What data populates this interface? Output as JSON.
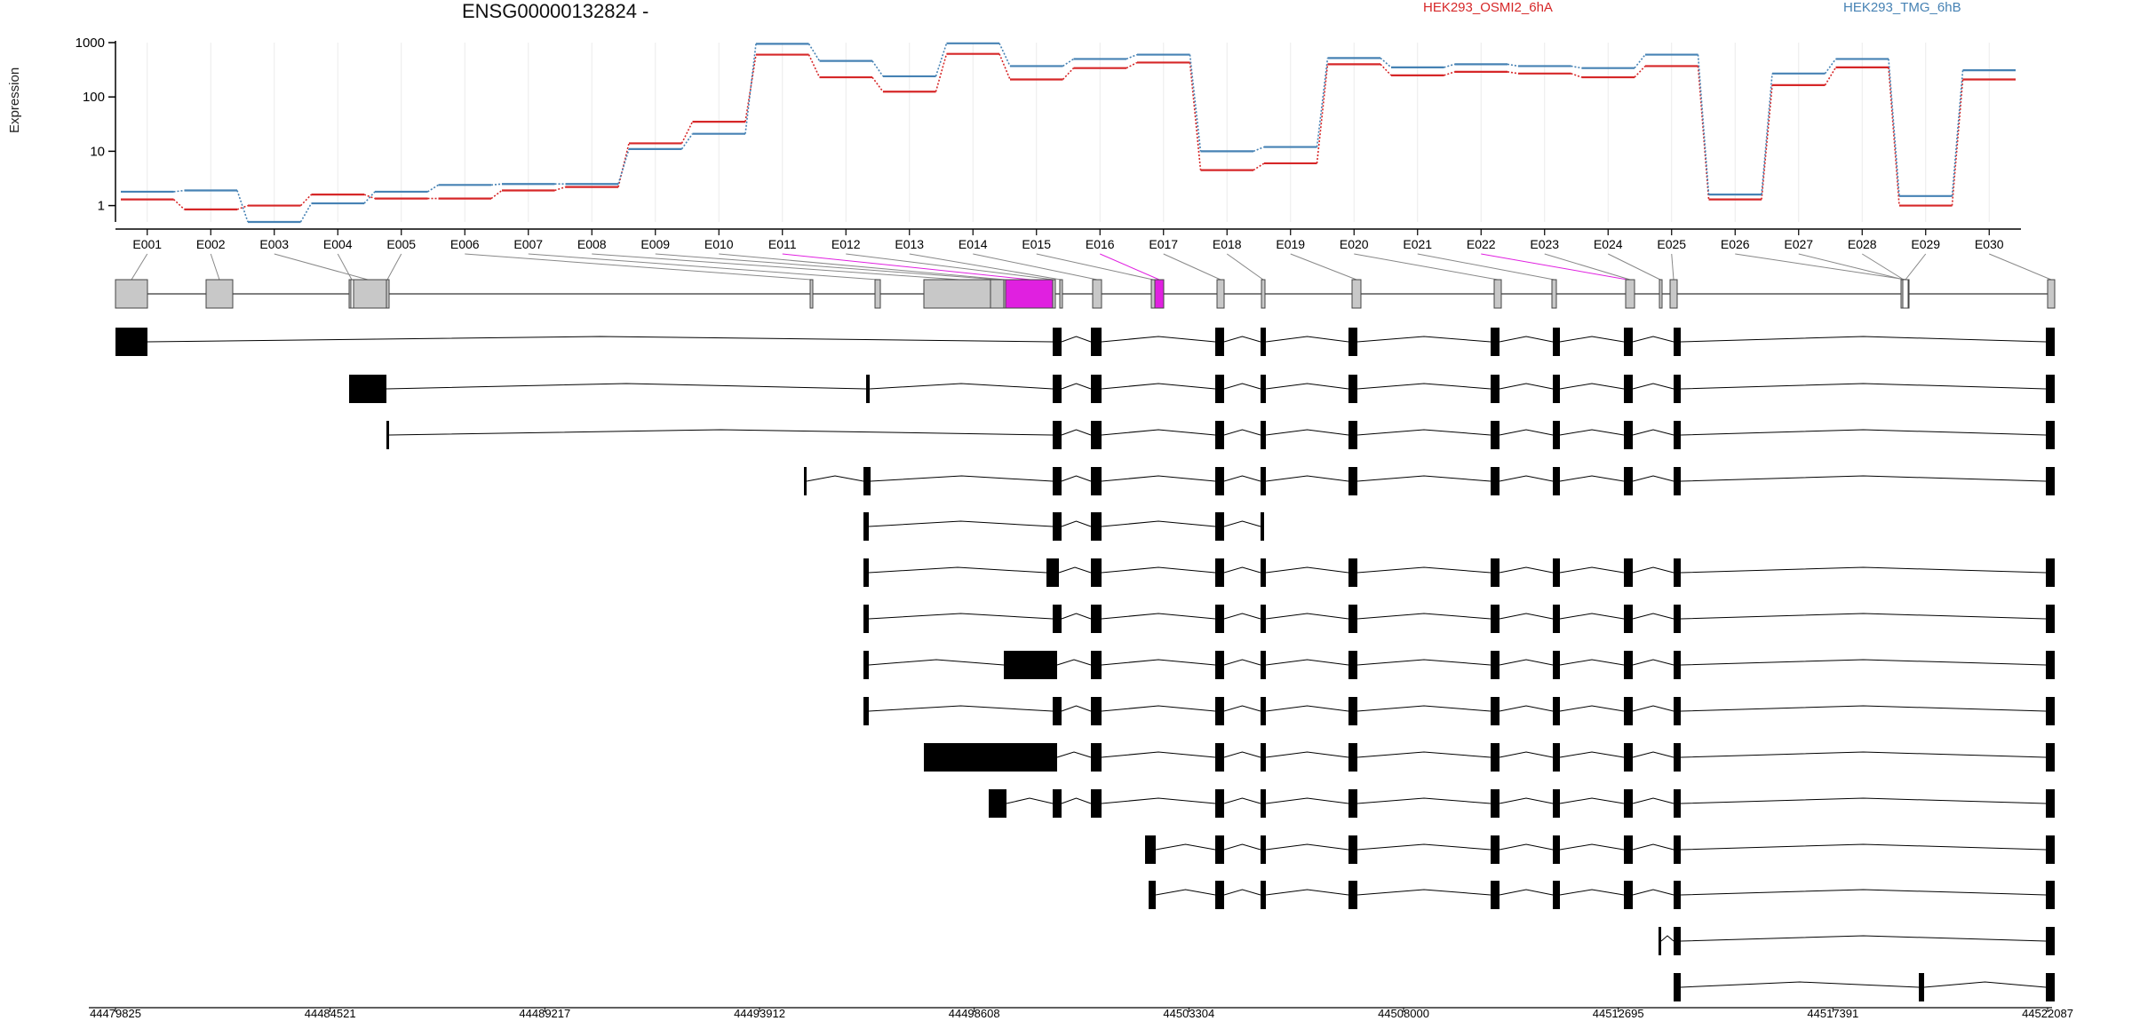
{
  "chart_data": {
    "type": "line",
    "title": "ENSG00000132824 -",
    "ylabel": "Expression",
    "yscale": "log",
    "ylim": [
      0.5,
      1000
    ],
    "yticks": [
      "1",
      "10",
      "100",
      "1000"
    ],
    "legend": "top",
    "categories": [
      "E001",
      "E002",
      "E003",
      "E004",
      "E005",
      "E006",
      "E007",
      "E008",
      "E009",
      "E010",
      "E011",
      "E012",
      "E013",
      "E014",
      "E015",
      "E016",
      "E017",
      "E018",
      "E019",
      "E020",
      "E021",
      "E022",
      "E023",
      "E024",
      "E025",
      "E026",
      "E027",
      "E028",
      "E029",
      "E030"
    ],
    "series": [
      {
        "name": "HEK293_OSMI2_6hA",
        "color": "#d62728",
        "values": [
          1.3,
          0.85,
          1.0,
          1.6,
          1.35,
          1.35,
          1.9,
          2.2,
          14,
          35,
          600,
          230,
          125,
          620,
          210,
          340,
          430,
          4.5,
          6,
          400,
          250,
          290,
          270,
          230,
          370,
          1.3,
          165,
          350,
          1.0,
          210
        ]
      },
      {
        "name": "HEK293_TMG_6hB",
        "color": "#4682b4",
        "values": [
          1.8,
          1.9,
          0.5,
          1.1,
          1.8,
          2.4,
          2.5,
          2.5,
          11,
          21,
          950,
          460,
          240,
          970,
          370,
          500,
          600,
          10,
          12,
          520,
          350,
          400,
          370,
          340,
          600,
          1.6,
          270,
          500,
          1.5,
          310
        ]
      }
    ],
    "exon_highlight": [
      "E011",
      "E016",
      "E022"
    ],
    "highlight_color": "#e020e0",
    "genomic_ticks": [
      "44479825",
      "44484521",
      "44489217",
      "44493912",
      "44498608",
      "44503304",
      "44508000",
      "44512695",
      "44517391",
      "44522087"
    ]
  }
}
